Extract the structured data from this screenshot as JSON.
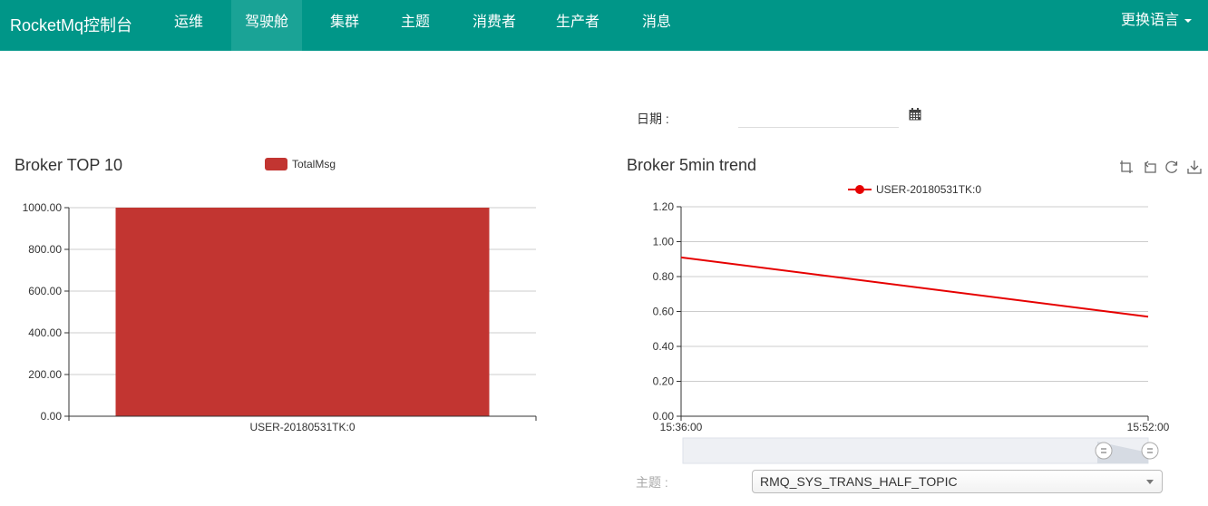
{
  "navbar": {
    "brand": "RocketMq控制台",
    "items": [
      {
        "label": "运维",
        "active": false
      },
      {
        "label": "驾驶舱",
        "active": true
      },
      {
        "label": "集群",
        "active": false
      },
      {
        "label": "主题",
        "active": false
      },
      {
        "label": "消费者",
        "active": false
      },
      {
        "label": "生产者",
        "active": false
      },
      {
        "label": "消息",
        "active": false
      }
    ],
    "language": "更换语言"
  },
  "date": {
    "label": "日期 :",
    "value": ""
  },
  "topic": {
    "label": "主题 :",
    "selected": "RMQ_SYS_TRANS_HALF_TOPIC"
  },
  "colors": {
    "navbar": "#009688",
    "bar": "#c23531",
    "line": "#e60000"
  },
  "toolbox_icons": [
    "zoom-icon",
    "zoom-reset-icon",
    "restore-icon",
    "save-image-icon"
  ],
  "chart_data": [
    {
      "type": "bar",
      "title": "Broker TOP 10",
      "categories": [
        "USER-20180531TK:0"
      ],
      "series": [
        {
          "name": "TotalMsg",
          "values": [
            1000
          ]
        }
      ],
      "ylim": [
        0,
        1000
      ],
      "yticks": [
        "0.00",
        "200.00",
        "400.00",
        "600.00",
        "800.00",
        "1000.00"
      ],
      "legend": "top-center",
      "grid": true
    },
    {
      "type": "line",
      "title": "Broker 5min trend",
      "x": [
        "15:36:00",
        "15:52:00"
      ],
      "series": [
        {
          "name": "USER-20180531TK:0",
          "values": [
            0.91,
            0.57
          ]
        }
      ],
      "ylim": [
        0,
        1.2
      ],
      "yticks": [
        "0.00",
        "0.20",
        "0.40",
        "0.60",
        "0.80",
        "1.00",
        "1.20"
      ],
      "legend": "top-center",
      "grid": true
    }
  ]
}
